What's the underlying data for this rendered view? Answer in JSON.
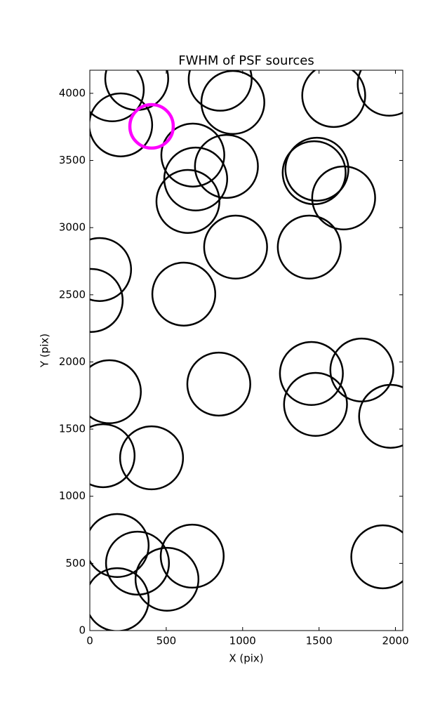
{
  "chart_data": {
    "type": "circles",
    "title": "FWHM of PSF sources",
    "x_label": "X (pix)",
    "y_label": "Y (pix)",
    "xlim": [
      0,
      2048
    ],
    "ylim": [
      0,
      4172
    ],
    "xticks": [
      0,
      500,
      1000,
      1500,
      2000
    ],
    "yticks": [
      0,
      500,
      1000,
      1500,
      2000,
      2500,
      3000,
      3500,
      4000
    ],
    "series": [
      {
        "color": "#000000",
        "radius": 206,
        "x": [
          147,
          307,
          202,
          853,
          936,
          1596,
          1959,
          674,
          693,
          894,
          642,
          1486,
          1468,
          1661,
          954,
          1436,
          64,
          9,
          615,
          128,
          844,
          1450,
          1780,
          1477,
          1968,
          87,
          404,
          179,
          312,
          670,
          505,
          179,
          1917
        ],
        "values": [
          4026,
          4110,
          3765,
          4105,
          3932,
          3984,
          4068,
          3540,
          3362,
          3456,
          3195,
          3435,
          3409,
          3221,
          2855,
          2855,
          2688,
          2458,
          2505,
          1778,
          1835,
          1914,
          1940,
          1684,
          1595,
          1302,
          1286,
          633,
          502,
          554,
          382,
          230,
          549
        ]
      },
      {
        "color": "#ff00ff",
        "radius": 142,
        "x": [
          404
        ],
        "values": [
          3754
        ]
      }
    ]
  }
}
